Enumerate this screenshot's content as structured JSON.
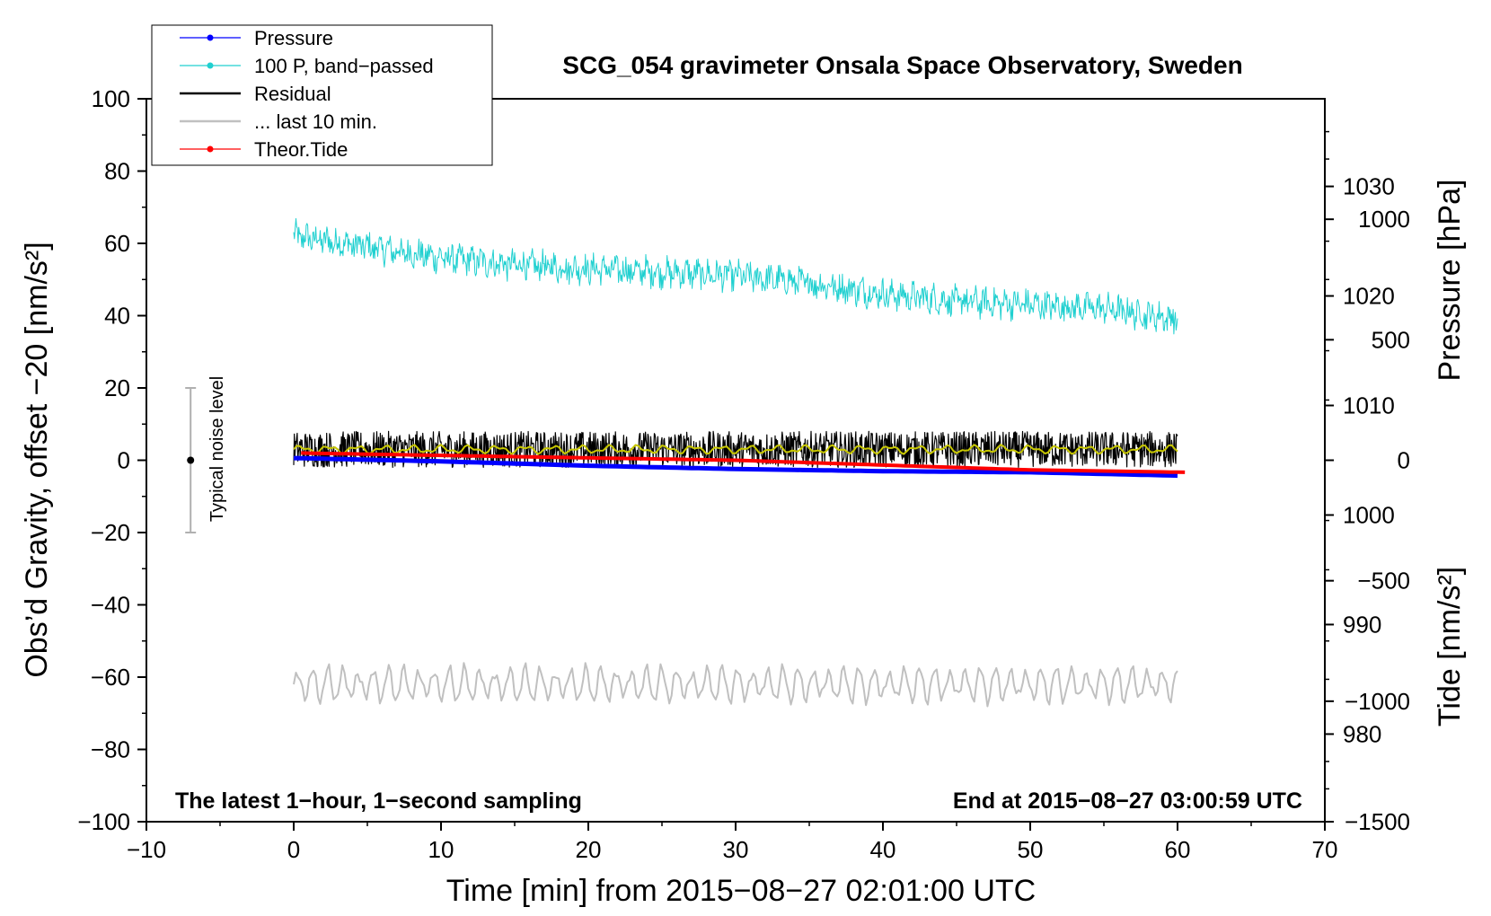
{
  "chart_data": {
    "type": "line",
    "title": "SCG_054 gravimeter Onsala Space Observatory, Sweden",
    "xlabel": "Time [min] from 2015−08−27 02:01:00 UTC",
    "ylabel_left": "Obs’d Gravity, offset −20 [nm/s²]",
    "ylabel_right_pressure": "Pressure [hPa]",
    "ylabel_right_tide": "Tide [nm/s²]",
    "xlim": [
      -10,
      70
    ],
    "ylim_left": [
      -100,
      100
    ],
    "ylim_pressure": [
      972,
      1038
    ],
    "ylim_tide": [
      -1500,
      1500
    ],
    "x_ticks": [
      "−10",
      "0",
      "10",
      "20",
      "30",
      "40",
      "50",
      "60",
      "70"
    ],
    "y_ticks_left": [
      "−100",
      "−80",
      "−60",
      "−40",
      "−20",
      "0",
      "20",
      "40",
      "60",
      "80",
      "100"
    ],
    "y_ticks_pressure": [
      "980",
      "990",
      "1000",
      "1010",
      "1020",
      "1030"
    ],
    "y_ticks_tide": [
      "−1500",
      "−1000",
      "−500",
      "0",
      "500",
      "1000"
    ],
    "annotation_left": "The latest 1−hour, 1−second sampling",
    "annotation_right": "End at 2015−08−27 03:00:59 UTC",
    "noise_label": "Typical noise level",
    "noise_bar": {
      "x": -7,
      "center": 0,
      "low": -20,
      "high": 20
    },
    "legend": [
      {
        "label": "Pressure",
        "color": "#0000ff",
        "marker": "dot"
      },
      {
        "label": "100 P, band−passed",
        "color": "#20d0d0",
        "marker": "dot"
      },
      {
        "label": "Residual",
        "color": "#000000",
        "marker": "line"
      },
      {
        "label": "... last 10 min.",
        "color": "#c0c0c0",
        "marker": "line"
      },
      {
        "label": "Theor.Tide",
        "color": "#ff0000",
        "marker": "dot"
      }
    ],
    "series": [
      {
        "name": "Pressure",
        "axis": "pressure_hPa",
        "color": "#0000ff",
        "x": [
          0,
          10,
          20,
          30,
          40,
          50,
          60
        ],
        "y": [
          1005.2,
          1004.9,
          1004.5,
          1004.2,
          1004.0,
          1003.9,
          1003.6
        ]
      },
      {
        "name": "100 P, band−passed",
        "axis": "left_nm_s2",
        "color": "#20d0d0",
        "x": [
          0,
          5,
          10,
          15,
          20,
          25,
          30,
          35,
          40,
          45,
          50,
          55,
          60
        ],
        "y": [
          62,
          59,
          56,
          54,
          53,
          52,
          51,
          49,
          46,
          44,
          43,
          42,
          39
        ]
      },
      {
        "name": "Residual",
        "axis": "left_nm_s2",
        "color": "#000000",
        "x": [
          0,
          10,
          20,
          30,
          40,
          50,
          60
        ],
        "y": [
          3,
          3,
          3,
          3,
          3,
          3,
          3
        ]
      },
      {
        "name": "Residual smoothed",
        "axis": "left_nm_s2",
        "color": "#c8c800",
        "x": [
          0,
          10,
          20,
          30,
          40,
          50,
          60
        ],
        "y": [
          3,
          3,
          3,
          3,
          3,
          3,
          3
        ]
      },
      {
        "name": "... last 10 min.",
        "axis": "left_nm_s2",
        "color": "#c0c0c0",
        "x": [
          0,
          10,
          20,
          30,
          40,
          50,
          60
        ],
        "y": [
          -62,
          -62,
          -62,
          -62,
          -62,
          -62,
          -62
        ]
      },
      {
        "name": "Theor.Tide",
        "axis": "tide_nm_s2",
        "color": "#ff0000",
        "x": [
          0.5,
          10,
          20,
          30,
          40,
          50,
          60.5
        ],
        "y": [
          30,
          20,
          10,
          0,
          -20,
          -40,
          -50
        ]
      }
    ]
  }
}
